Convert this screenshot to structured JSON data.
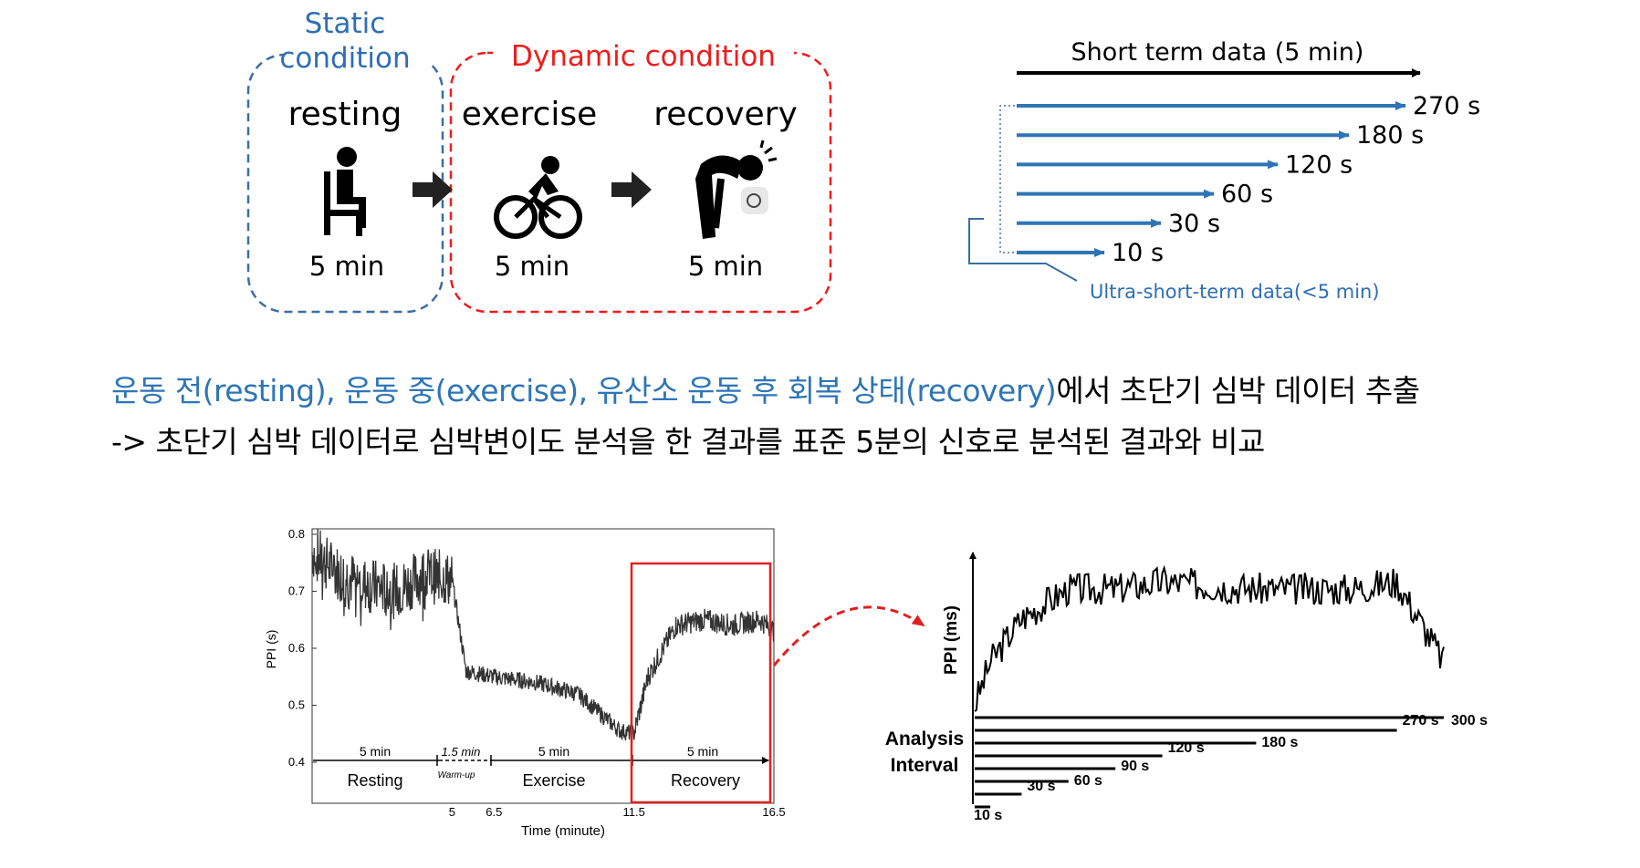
{
  "protocol": {
    "static_label_line1": "Static",
    "static_label_line2": "condition",
    "dynamic_label": "Dynamic condition",
    "stages": [
      {
        "name": "resting",
        "duration": "5 min"
      },
      {
        "name": "exercise",
        "duration": "5 min"
      },
      {
        "name": "recovery",
        "duration": "5 min"
      }
    ]
  },
  "segments": {
    "short_term_label": "Short term data (5 min)",
    "ultra_short_items": [
      "270 s",
      "180 s",
      "120 s",
      "60 s",
      "30 s",
      "10 s"
    ],
    "ultra_short_label": "Ultra-short-term data(<5 min)"
  },
  "description": {
    "line1_blue": "운동 전(resting), 운동 중(exercise), 유산소 운동 후 회복 상태(recovery)",
    "line1_black": "에서 초단기 심박 데이터 추출",
    "line2": "-> 초단기 심박 데이터로 심박변이도 분석을 한 결과를 표준 5분의 신호로 분석된 결과와 비교"
  },
  "chart_data": [
    {
      "type": "line",
      "xlabel": "Time (minute)",
      "ylabel": "PPI (s)",
      "xlim": [
        0,
        16.5
      ],
      "ylim": [
        0.4,
        0.8
      ],
      "x_ticks": [
        "5",
        "6.5",
        "11.5",
        "16.5"
      ],
      "y_ticks": [
        "0.8",
        "0.7",
        "0.6",
        "0.5",
        "0.4"
      ],
      "phases": [
        {
          "name": "Resting",
          "duration": "5 min"
        },
        {
          "name": "Warm-up",
          "duration": "1.5 min"
        },
        {
          "name": "Exercise",
          "duration": "5 min"
        },
        {
          "name": "Recovery",
          "duration": "5 min"
        }
      ],
      "series": [
        {
          "x": [
            0,
            1,
            2,
            3,
            4,
            5,
            5.5,
            6.5,
            8,
            9.5,
            11,
            11.5,
            12,
            13,
            14,
            15,
            16,
            16.5
          ],
          "y": [
            0.77,
            0.73,
            0.71,
            0.7,
            0.73,
            0.72,
            0.56,
            0.55,
            0.54,
            0.52,
            0.455,
            0.45,
            0.55,
            0.64,
            0.65,
            0.64,
            0.65,
            0.63
          ]
        }
      ],
      "highlight": "Recovery"
    },
    {
      "type": "line",
      "ylabel": "PPI (ms)",
      "series": [
        {
          "x": [
            0,
            10,
            30,
            60,
            90,
            120,
            180,
            240,
            270,
            300
          ],
          "y": [
            0.52,
            0.58,
            0.64,
            0.68,
            0.68,
            0.69,
            0.68,
            0.68,
            0.69,
            0.58
          ]
        }
      ],
      "analysis_label_line1": "Analysis",
      "analysis_label_line2": "Interval",
      "intervals": [
        "300 s",
        "270 s",
        "180 s",
        "120 s",
        "90 s",
        "60 s",
        "30 s",
        "10 s"
      ]
    }
  ]
}
